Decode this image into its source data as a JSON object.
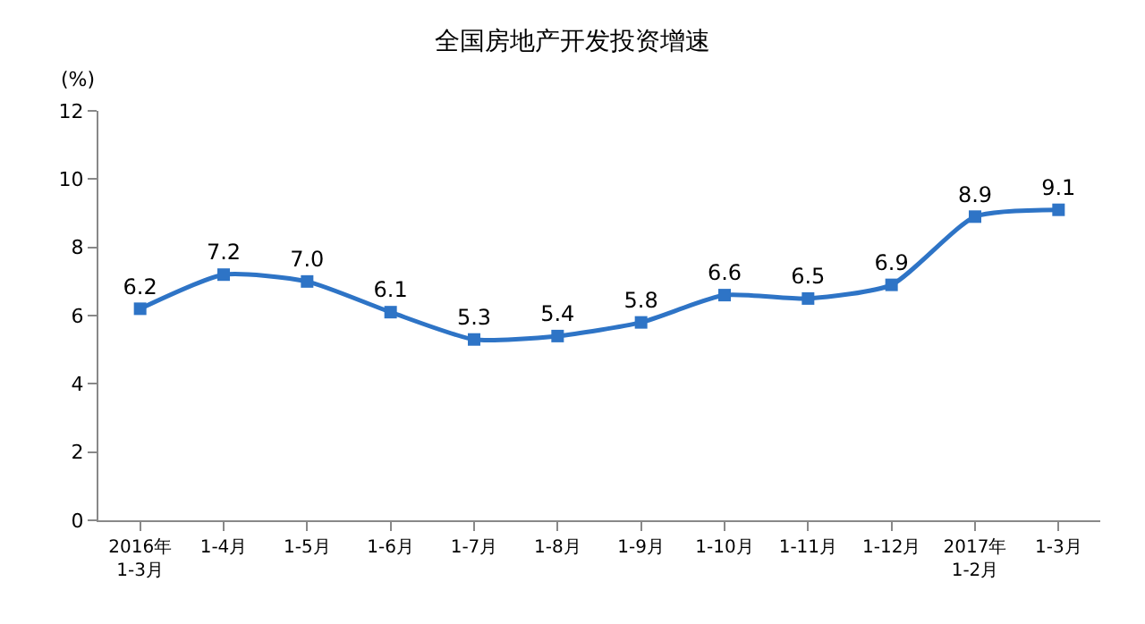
{
  "chart_data": {
    "type": "line",
    "title": "全国房地产开发投资增速",
    "ylabel": "(%)",
    "categories": [
      "2016年\n1-3月",
      "1-4月",
      "1-5月",
      "1-6月",
      "1-7月",
      "1-8月",
      "1-9月",
      "1-10月",
      "1-11月",
      "1-12月",
      "2017年\n1-2月",
      "1-3月"
    ],
    "series": [
      {
        "color": "#2e74c6",
        "values": [
          6.2,
          7.2,
          7.0,
          6.1,
          5.3,
          5.4,
          5.8,
          6.6,
          6.5,
          6.9,
          8.9,
          9.1
        ]
      }
    ],
    "value_labels": [
      "6.2",
      "7.2",
      "7.0",
      "6.1",
      "5.3",
      "5.4",
      "5.8",
      "6.6",
      "6.5",
      "6.9",
      "8.9",
      "9.1"
    ],
    "ylim": [
      0,
      12
    ],
    "yticks": [
      0,
      2,
      4,
      6,
      8,
      10,
      12
    ],
    "marker": "square",
    "line_style": "solid"
  }
}
